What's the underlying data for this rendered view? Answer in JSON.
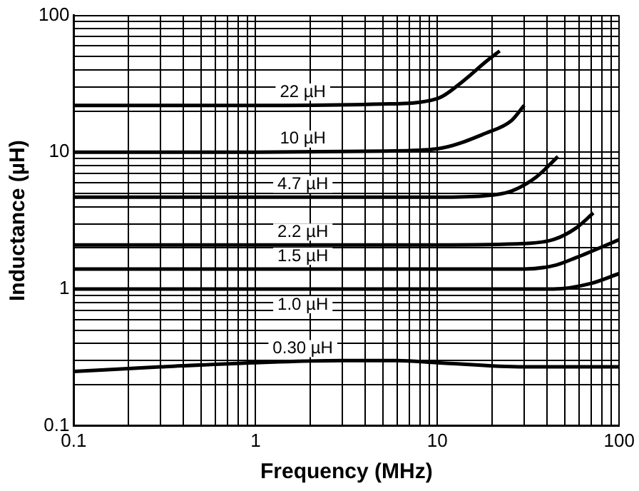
{
  "chart_data": {
    "type": "line",
    "xlabel": "Frequency (MHz)",
    "ylabel": "Inductance (µH)",
    "log": "xy",
    "grid": true,
    "legend": false,
    "marker": "none",
    "line_style": "solid",
    "xlim": [
      0.1,
      100
    ],
    "ylim": [
      0.1,
      100
    ],
    "xticks": [
      0.1,
      {
        "value": 0.2,
        "label": null
      },
      {
        "value": 0.3,
        "label": null
      },
      {
        "value": 0.4,
        "label": null
      },
      {
        "value": 0.5,
        "label": null
      },
      {
        "value": 0.6,
        "label": null
      },
      {
        "value": 0.7,
        "label": null
      },
      {
        "value": 0.8,
        "label": null
      },
      {
        "value": 0.9,
        "label": null
      },
      1,
      {
        "value": 2,
        "label": null
      },
      {
        "value": 3,
        "label": null
      },
      {
        "value": 4,
        "label": null
      },
      {
        "value": 5,
        "label": null
      },
      {
        "value": 6,
        "label": null
      },
      {
        "value": 7,
        "label": null
      },
      {
        "value": 8,
        "label": null
      },
      {
        "value": 9,
        "label": null
      },
      10,
      {
        "value": 20,
        "label": null
      },
      {
        "value": 30,
        "label": null
      },
      {
        "value": 40,
        "label": null
      },
      {
        "value": 50,
        "label": null
      },
      {
        "value": 60,
        "label": null
      },
      {
        "value": 70,
        "label": null
      },
      {
        "value": 80,
        "label": null
      },
      {
        "value": 90,
        "label": null
      },
      100
    ],
    "yticks": [
      0.1,
      {
        "value": 0.2,
        "label": null
      },
      {
        "value": 0.3,
        "label": null
      },
      {
        "value": 0.4,
        "label": null
      },
      {
        "value": 0.5,
        "label": null
      },
      {
        "value": 0.6,
        "label": null
      },
      {
        "value": 0.7,
        "label": null
      },
      {
        "value": 0.8,
        "label": null
      },
      {
        "value": 0.9,
        "label": null
      },
      1,
      {
        "value": 2,
        "label": null
      },
      {
        "value": 3,
        "label": null
      },
      {
        "value": 4,
        "label": null
      },
      {
        "value": 5,
        "label": null
      },
      {
        "value": 6,
        "label": null
      },
      {
        "value": 7,
        "label": null
      },
      {
        "value": 8,
        "label": null
      },
      {
        "value": 9,
        "label": null
      },
      10,
      {
        "value": 20,
        "label": null
      },
      {
        "value": 30,
        "label": null
      },
      {
        "value": 40,
        "label": null
      },
      {
        "value": 50,
        "label": null
      },
      {
        "value": 60,
        "label": null
      },
      {
        "value": 70,
        "label": null
      },
      {
        "value": 80,
        "label": null
      },
      {
        "value": 90,
        "label": null
      },
      100
    ],
    "series": [
      {
        "name": "22 µH",
        "color": "#000000",
        "x": [
          0.1,
          1,
          5,
          10,
          13.8,
          18.5,
          22
        ],
        "values": [
          22,
          22,
          22.5,
          24.7,
          33,
          46,
          55
        ]
      },
      {
        "name": "10 µH",
        "color": "#000000",
        "x": [
          0.1,
          1,
          5,
          10,
          18.5,
          25.5,
          30
        ],
        "values": [
          10,
          10,
          10.2,
          10.6,
          13.8,
          17,
          22
        ]
      },
      {
        "name": "4.7 µH",
        "color": "#000000",
        "x": [
          0.1,
          1,
          10,
          18,
          25.5,
          35,
          46
        ],
        "values": [
          4.7,
          4.7,
          4.7,
          4.8,
          5.2,
          6.6,
          9.3
        ]
      },
      {
        "name": "2.2 µH",
        "color": "#000000",
        "x": [
          0.1,
          1,
          10,
          30,
          43.5,
          58,
          72
        ],
        "values": [
          2.1,
          2.1,
          2.1,
          2.15,
          2.3,
          2.8,
          3.6
        ]
      },
      {
        "name": "1.5 µH",
        "color": "#000000",
        "x": [
          0.1,
          1,
          10,
          30,
          45,
          58,
          100
        ],
        "values": [
          1.4,
          1.4,
          1.4,
          1.4,
          1.5,
          1.7,
          2.3
        ]
      },
      {
        "name": "1.0 µH",
        "color": "#000000",
        "x": [
          0.1,
          1,
          10,
          43.5,
          70,
          100
        ],
        "values": [
          1,
          1,
          1,
          1,
          1.1,
          1.3
        ]
      },
      {
        "name": "0.30 µH",
        "color": "#000000",
        "x": [
          0.1,
          0.3,
          1,
          3,
          6,
          10,
          30,
          100
        ],
        "values": [
          0.25,
          0.27,
          0.29,
          0.3,
          0.3,
          0.29,
          0.27,
          0.27
        ]
      }
    ]
  }
}
